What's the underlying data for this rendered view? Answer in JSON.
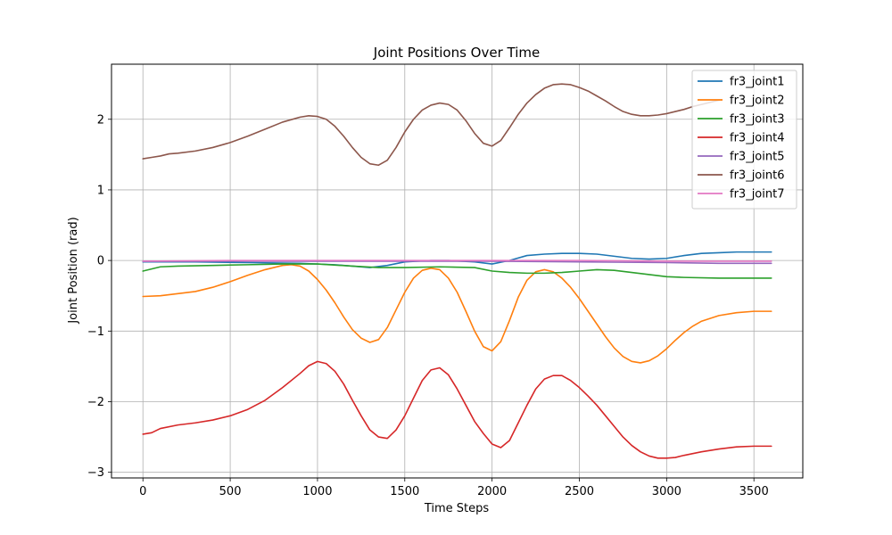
{
  "chart_data": {
    "type": "line",
    "title": "Joint Positions Over Time",
    "xlabel": "Time Steps",
    "ylabel": "Joint Position (rad)",
    "xlim": [
      -180,
      3780
    ],
    "ylim": [
      -3.08,
      2.78
    ],
    "xticks": [
      0,
      500,
      1000,
      1500,
      2000,
      2500,
      3000,
      3500
    ],
    "yticks": [
      -3,
      -2,
      -1,
      0,
      1,
      2
    ],
    "ytick_labels": [
      "−3",
      "−2",
      "−1",
      "0",
      "1",
      "2"
    ],
    "grid": true,
    "legend_position": "top-right",
    "series": [
      {
        "name": "fr3_joint1",
        "color": "#1f77b4",
        "points": [
          [
            0,
            -0.02
          ],
          [
            300,
            -0.02
          ],
          [
            600,
            -0.03
          ],
          [
            900,
            -0.04
          ],
          [
            1100,
            -0.06
          ],
          [
            1300,
            -0.1
          ],
          [
            1400,
            -0.07
          ],
          [
            1500,
            -0.02
          ],
          [
            1650,
            0.0
          ],
          [
            1750,
            0.0
          ],
          [
            1900,
            -0.02
          ],
          [
            2000,
            -0.05
          ],
          [
            2100,
            0.0
          ],
          [
            2200,
            0.07
          ],
          [
            2300,
            0.09
          ],
          [
            2400,
            0.1
          ],
          [
            2500,
            0.1
          ],
          [
            2600,
            0.09
          ],
          [
            2700,
            0.06
          ],
          [
            2800,
            0.03
          ],
          [
            2900,
            0.02
          ],
          [
            3000,
            0.03
          ],
          [
            3100,
            0.07
          ],
          [
            3200,
            0.1
          ],
          [
            3300,
            0.11
          ],
          [
            3400,
            0.12
          ],
          [
            3600,
            0.12
          ]
        ]
      },
      {
        "name": "fr3_joint2",
        "color": "#ff7f0e",
        "points": [
          [
            0,
            -0.51
          ],
          [
            100,
            -0.5
          ],
          [
            200,
            -0.47
          ],
          [
            300,
            -0.44
          ],
          [
            400,
            -0.38
          ],
          [
            500,
            -0.3
          ],
          [
            600,
            -0.21
          ],
          [
            700,
            -0.13
          ],
          [
            800,
            -0.07
          ],
          [
            850,
            -0.06
          ],
          [
            900,
            -0.08
          ],
          [
            950,
            -0.15
          ],
          [
            1000,
            -0.27
          ],
          [
            1050,
            -0.42
          ],
          [
            1100,
            -0.6
          ],
          [
            1150,
            -0.8
          ],
          [
            1200,
            -0.98
          ],
          [
            1250,
            -1.1
          ],
          [
            1300,
            -1.16
          ],
          [
            1350,
            -1.12
          ],
          [
            1400,
            -0.95
          ],
          [
            1450,
            -0.7
          ],
          [
            1500,
            -0.45
          ],
          [
            1550,
            -0.25
          ],
          [
            1600,
            -0.14
          ],
          [
            1650,
            -0.11
          ],
          [
            1700,
            -0.13
          ],
          [
            1750,
            -0.25
          ],
          [
            1800,
            -0.45
          ],
          [
            1850,
            -0.72
          ],
          [
            1900,
            -1.0
          ],
          [
            1950,
            -1.22
          ],
          [
            2000,
            -1.28
          ],
          [
            2050,
            -1.15
          ],
          [
            2100,
            -0.85
          ],
          [
            2150,
            -0.52
          ],
          [
            2200,
            -0.28
          ],
          [
            2250,
            -0.16
          ],
          [
            2300,
            -0.13
          ],
          [
            2350,
            -0.16
          ],
          [
            2400,
            -0.25
          ],
          [
            2450,
            -0.38
          ],
          [
            2500,
            -0.54
          ],
          [
            2550,
            -0.72
          ],
          [
            2600,
            -0.9
          ],
          [
            2650,
            -1.08
          ],
          [
            2700,
            -1.24
          ],
          [
            2750,
            -1.36
          ],
          [
            2800,
            -1.43
          ],
          [
            2850,
            -1.45
          ],
          [
            2900,
            -1.42
          ],
          [
            2950,
            -1.35
          ],
          [
            3000,
            -1.25
          ],
          [
            3050,
            -1.13
          ],
          [
            3100,
            -1.02
          ],
          [
            3150,
            -0.93
          ],
          [
            3200,
            -0.86
          ],
          [
            3300,
            -0.78
          ],
          [
            3400,
            -0.74
          ],
          [
            3500,
            -0.72
          ],
          [
            3600,
            -0.72
          ]
        ]
      },
      {
        "name": "fr3_joint3",
        "color": "#2ca02c",
        "points": [
          [
            0,
            -0.15
          ],
          [
            50,
            -0.12
          ],
          [
            100,
            -0.09
          ],
          [
            200,
            -0.08
          ],
          [
            400,
            -0.07
          ],
          [
            600,
            -0.06
          ],
          [
            800,
            -0.05
          ],
          [
            1000,
            -0.05
          ],
          [
            1200,
            -0.08
          ],
          [
            1350,
            -0.1
          ],
          [
            1500,
            -0.1
          ],
          [
            1700,
            -0.09
          ],
          [
            1900,
            -0.1
          ],
          [
            2000,
            -0.15
          ],
          [
            2100,
            -0.17
          ],
          [
            2200,
            -0.18
          ],
          [
            2300,
            -0.18
          ],
          [
            2400,
            -0.17
          ],
          [
            2500,
            -0.15
          ],
          [
            2600,
            -0.13
          ],
          [
            2700,
            -0.14
          ],
          [
            2800,
            -0.17
          ],
          [
            2900,
            -0.2
          ],
          [
            3000,
            -0.23
          ],
          [
            3100,
            -0.24
          ],
          [
            3300,
            -0.25
          ],
          [
            3600,
            -0.25
          ]
        ]
      },
      {
        "name": "fr3_joint4",
        "color": "#d62728",
        "points": [
          [
            0,
            -2.46
          ],
          [
            50,
            -2.44
          ],
          [
            100,
            -2.38
          ],
          [
            200,
            -2.33
          ],
          [
            300,
            -2.3
          ],
          [
            400,
            -2.26
          ],
          [
            500,
            -2.2
          ],
          [
            600,
            -2.11
          ],
          [
            700,
            -1.98
          ],
          [
            800,
            -1.8
          ],
          [
            900,
            -1.6
          ],
          [
            950,
            -1.49
          ],
          [
            1000,
            -1.43
          ],
          [
            1050,
            -1.46
          ],
          [
            1100,
            -1.57
          ],
          [
            1150,
            -1.75
          ],
          [
            1200,
            -1.98
          ],
          [
            1250,
            -2.2
          ],
          [
            1300,
            -2.4
          ],
          [
            1350,
            -2.5
          ],
          [
            1400,
            -2.52
          ],
          [
            1450,
            -2.4
          ],
          [
            1500,
            -2.2
          ],
          [
            1550,
            -1.95
          ],
          [
            1600,
            -1.7
          ],
          [
            1650,
            -1.55
          ],
          [
            1700,
            -1.52
          ],
          [
            1750,
            -1.62
          ],
          [
            1800,
            -1.82
          ],
          [
            1850,
            -2.05
          ],
          [
            1900,
            -2.28
          ],
          [
            1950,
            -2.45
          ],
          [
            2000,
            -2.6
          ],
          [
            2050,
            -2.65
          ],
          [
            2100,
            -2.55
          ],
          [
            2150,
            -2.3
          ],
          [
            2200,
            -2.05
          ],
          [
            2250,
            -1.82
          ],
          [
            2300,
            -1.68
          ],
          [
            2350,
            -1.63
          ],
          [
            2400,
            -1.63
          ],
          [
            2450,
            -1.7
          ],
          [
            2500,
            -1.8
          ],
          [
            2550,
            -1.92
          ],
          [
            2600,
            -2.05
          ],
          [
            2650,
            -2.2
          ],
          [
            2700,
            -2.35
          ],
          [
            2750,
            -2.5
          ],
          [
            2800,
            -2.62
          ],
          [
            2850,
            -2.71
          ],
          [
            2900,
            -2.77
          ],
          [
            2950,
            -2.8
          ],
          [
            3000,
            -2.8
          ],
          [
            3050,
            -2.79
          ],
          [
            3100,
            -2.76
          ],
          [
            3200,
            -2.71
          ],
          [
            3300,
            -2.67
          ],
          [
            3400,
            -2.64
          ],
          [
            3500,
            -2.63
          ],
          [
            3600,
            -2.63
          ]
        ]
      },
      {
        "name": "fr3_joint5",
        "color": "#9467bd",
        "points": [
          [
            0,
            -0.01
          ],
          [
            500,
            -0.01
          ],
          [
            1000,
            -0.01
          ],
          [
            1500,
            -0.01
          ],
          [
            2000,
            -0.01
          ],
          [
            2500,
            -0.02
          ],
          [
            3000,
            -0.03
          ],
          [
            3300,
            -0.04
          ],
          [
            3600,
            -0.04
          ]
        ]
      },
      {
        "name": "fr3_joint6",
        "color": "#8c564b",
        "points": [
          [
            0,
            1.44
          ],
          [
            50,
            1.46
          ],
          [
            100,
            1.48
          ],
          [
            150,
            1.51
          ],
          [
            200,
            1.52
          ],
          [
            300,
            1.55
          ],
          [
            400,
            1.6
          ],
          [
            500,
            1.67
          ],
          [
            600,
            1.76
          ],
          [
            700,
            1.86
          ],
          [
            800,
            1.96
          ],
          [
            900,
            2.03
          ],
          [
            950,
            2.05
          ],
          [
            1000,
            2.04
          ],
          [
            1050,
            2.0
          ],
          [
            1100,
            1.9
          ],
          [
            1150,
            1.76
          ],
          [
            1200,
            1.6
          ],
          [
            1250,
            1.46
          ],
          [
            1300,
            1.37
          ],
          [
            1350,
            1.35
          ],
          [
            1400,
            1.42
          ],
          [
            1450,
            1.6
          ],
          [
            1500,
            1.82
          ],
          [
            1550,
            2.0
          ],
          [
            1600,
            2.13
          ],
          [
            1650,
            2.2
          ],
          [
            1700,
            2.23
          ],
          [
            1750,
            2.21
          ],
          [
            1800,
            2.13
          ],
          [
            1850,
            1.98
          ],
          [
            1900,
            1.8
          ],
          [
            1950,
            1.66
          ],
          [
            2000,
            1.62
          ],
          [
            2050,
            1.7
          ],
          [
            2100,
            1.88
          ],
          [
            2150,
            2.07
          ],
          [
            2200,
            2.23
          ],
          [
            2250,
            2.35
          ],
          [
            2300,
            2.44
          ],
          [
            2350,
            2.49
          ],
          [
            2400,
            2.5
          ],
          [
            2450,
            2.49
          ],
          [
            2500,
            2.45
          ],
          [
            2550,
            2.4
          ],
          [
            2600,
            2.33
          ],
          [
            2650,
            2.26
          ],
          [
            2700,
            2.18
          ],
          [
            2750,
            2.11
          ],
          [
            2800,
            2.07
          ],
          [
            2850,
            2.05
          ],
          [
            2900,
            2.05
          ],
          [
            2950,
            2.06
          ],
          [
            3000,
            2.08
          ],
          [
            3050,
            2.11
          ],
          [
            3100,
            2.14
          ],
          [
            3150,
            2.18
          ],
          [
            3200,
            2.21
          ],
          [
            3250,
            2.24
          ],
          [
            3300,
            2.27
          ]
        ]
      },
      {
        "name": "fr3_joint7",
        "color": "#e377c2",
        "points": [
          [
            0,
            -0.01
          ],
          [
            500,
            0.0
          ],
          [
            1000,
            0.0
          ],
          [
            1500,
            0.0
          ],
          [
            2000,
            0.0
          ],
          [
            2500,
            0.0
          ],
          [
            3000,
            -0.01
          ],
          [
            3600,
            -0.01
          ]
        ]
      }
    ]
  }
}
